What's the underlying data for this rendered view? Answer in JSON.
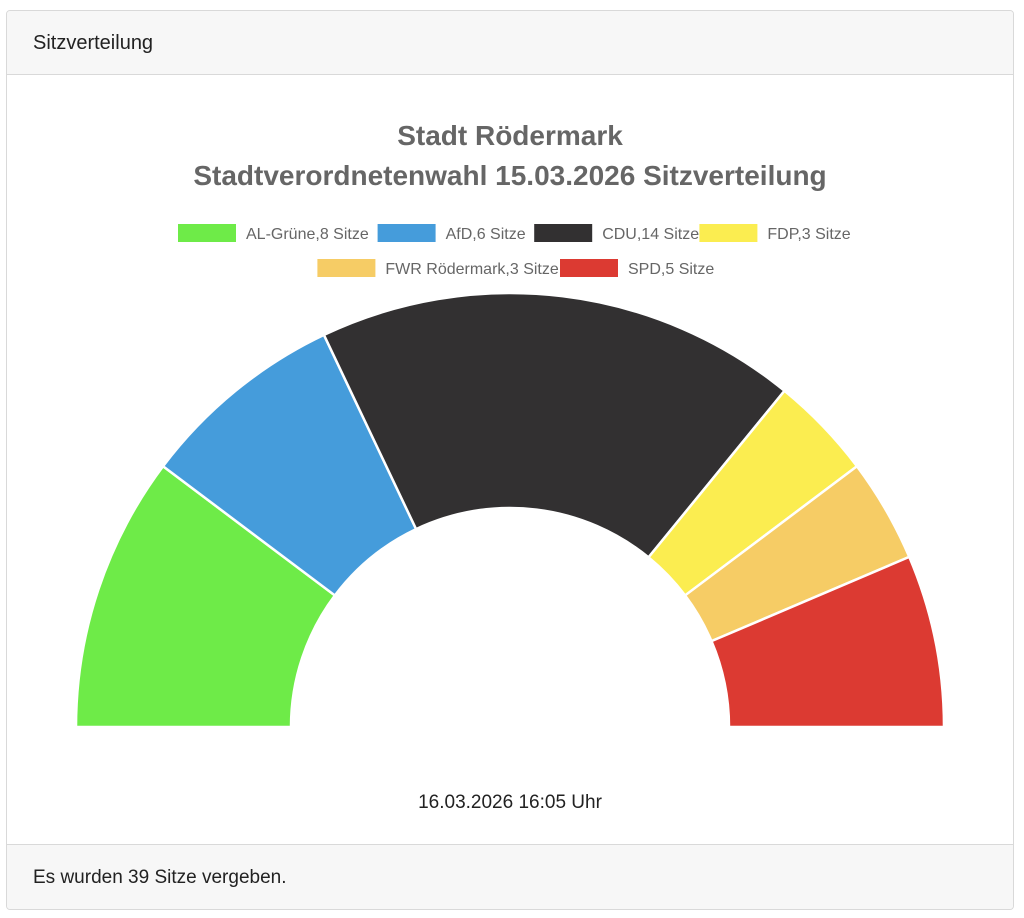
{
  "header": {
    "title": "Sitzverteilung"
  },
  "footer": {
    "text": "Es wurden 39 Sitze vergeben."
  },
  "chart_data": {
    "type": "pie",
    "variant": "half-doughnut (parliament)",
    "title": [
      "Stadt Rödermark",
      "Stadtverordnetenwahl 15.03.2026 Sitzverteilung"
    ],
    "legend_position": "top",
    "categories": [
      "AL-Grüne",
      "AfD",
      "CDU",
      "FDP",
      "FWR Rödermark",
      "SPD"
    ],
    "values": [
      8,
      6,
      14,
      3,
      3,
      5
    ],
    "legend_labels": [
      "AL-Grüne,8 Sitze",
      "AfD,6 Sitze",
      "CDU,14 Sitze",
      "FDP,3 Sitze",
      "FWR Rödermark,3 Sitze",
      "SPD,5 Sitze"
    ],
    "colors": [
      "#6eeb48",
      "#459cdb",
      "#323031",
      "#fbed50",
      "#f6cc65",
      "#dc3a32"
    ],
    "timestamp": "16.03.2026 16:05 Uhr"
  }
}
